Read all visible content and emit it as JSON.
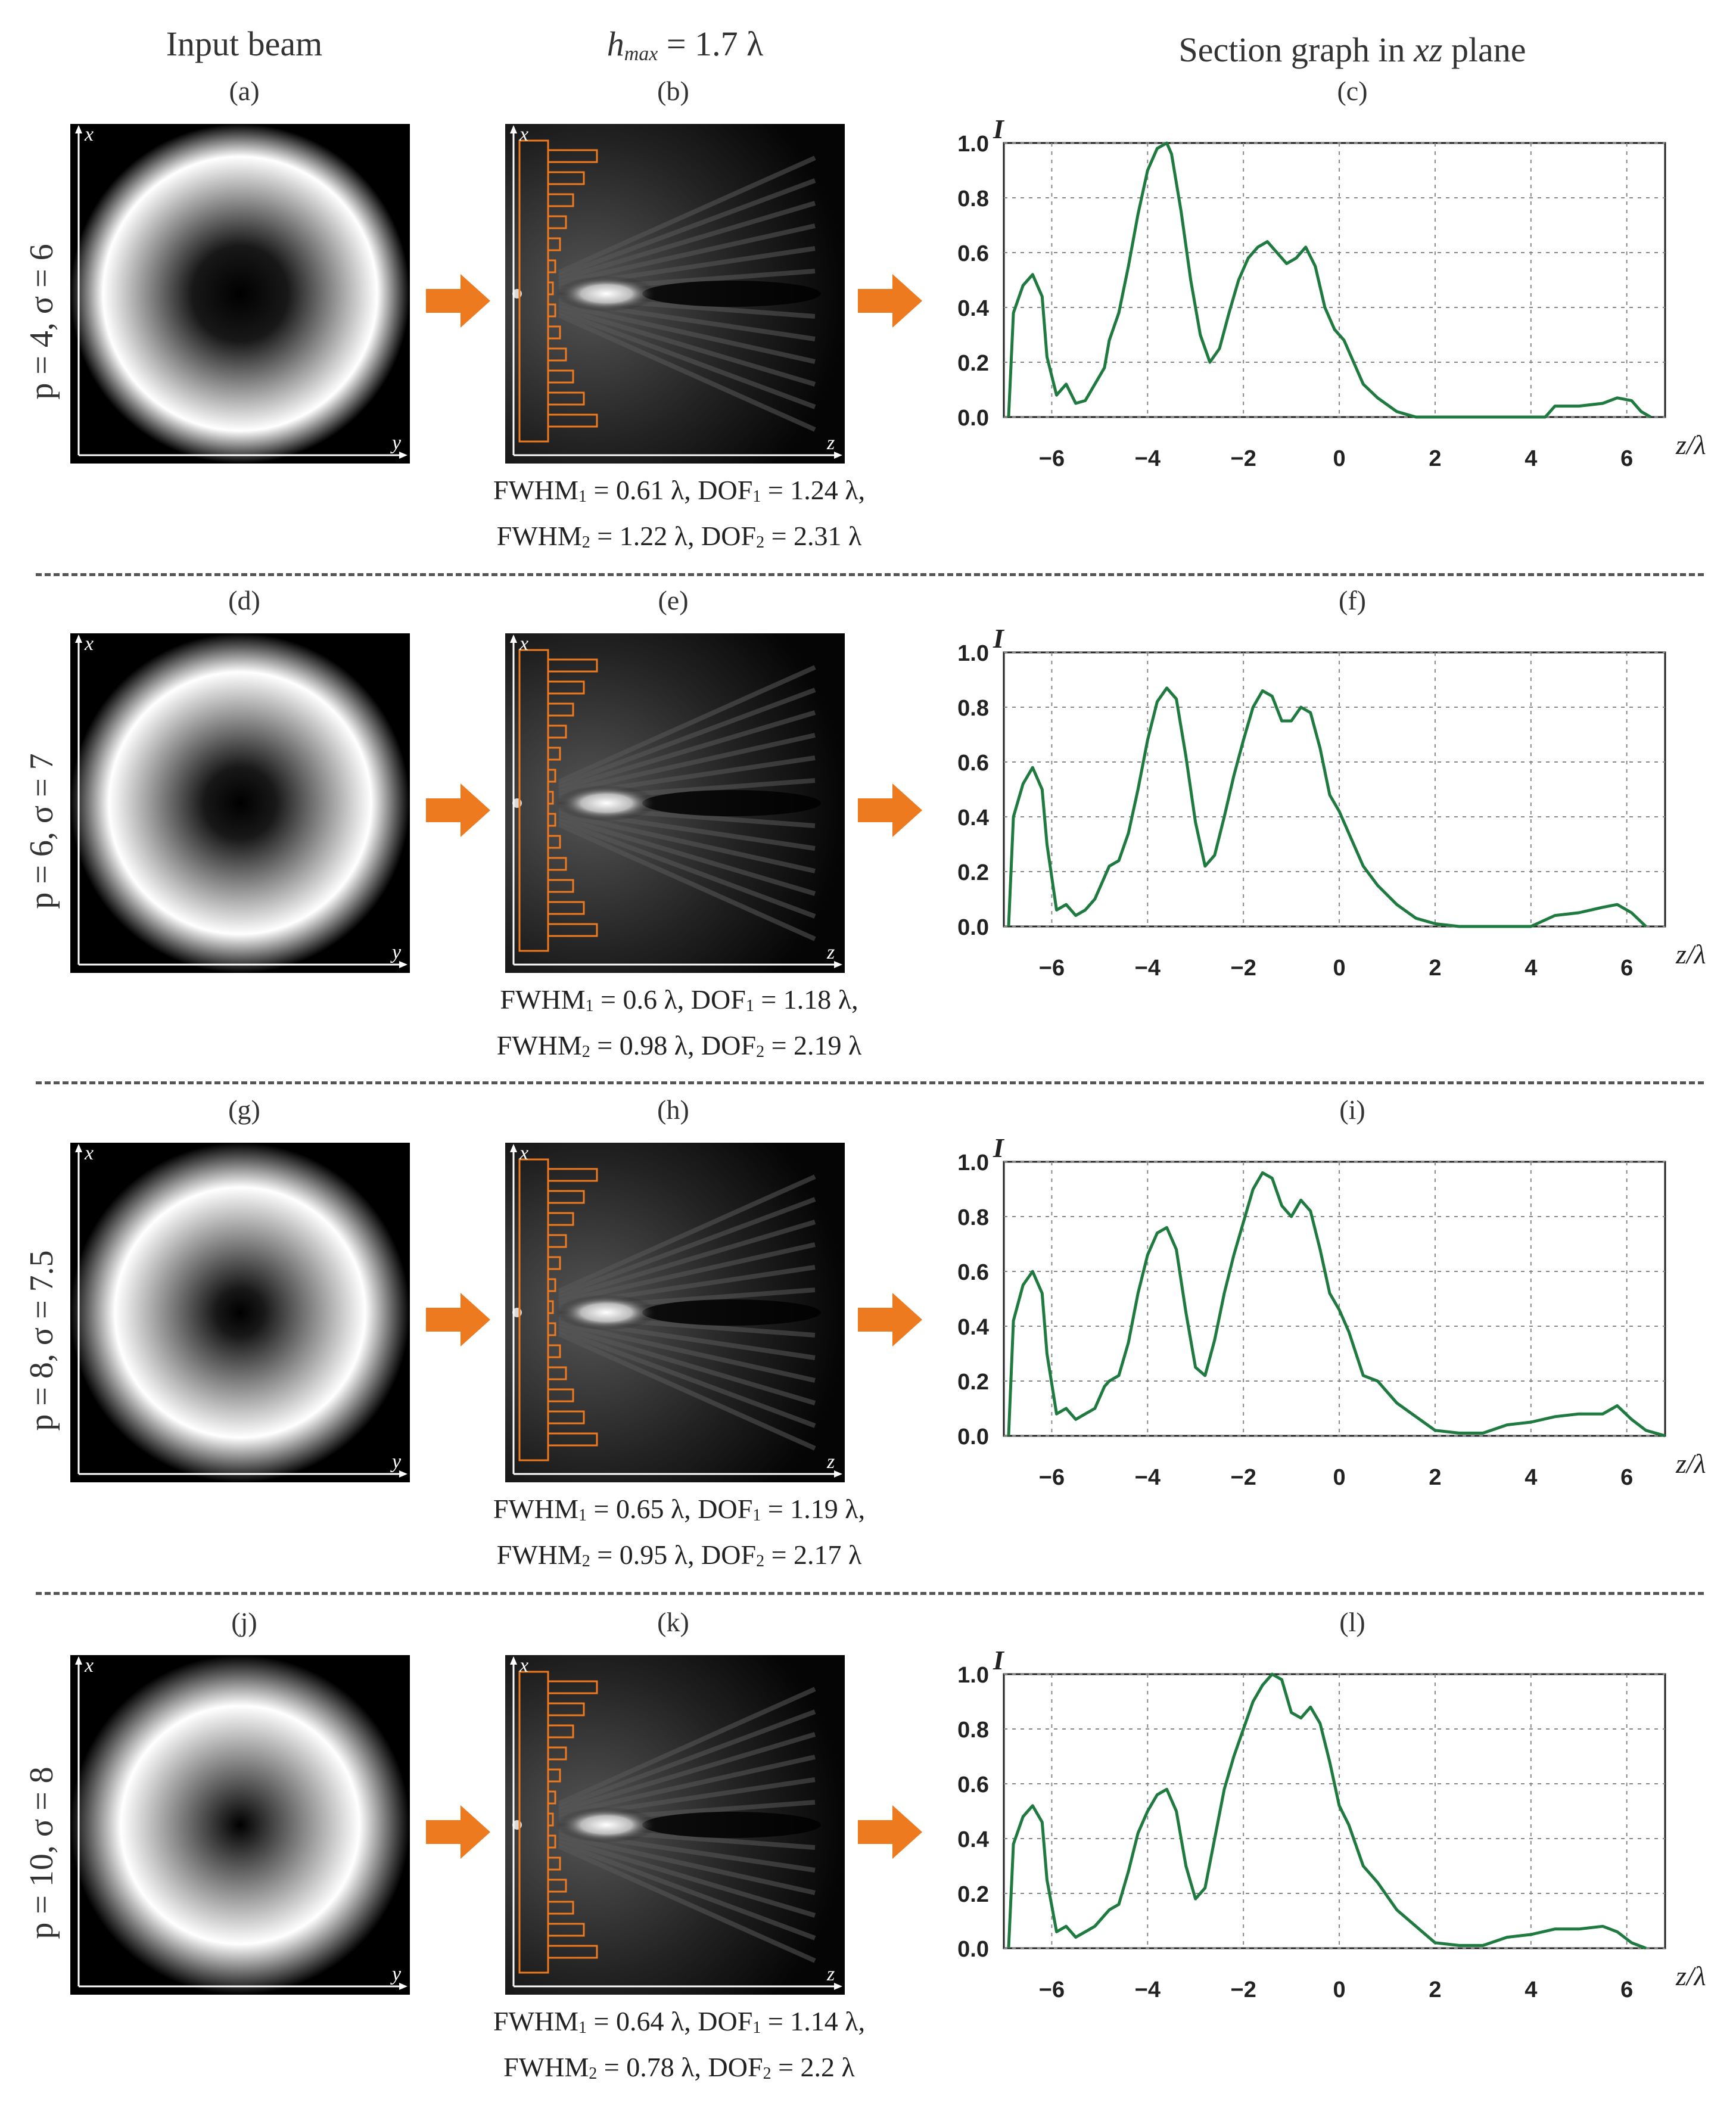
{
  "headers": {
    "input_beam": "Input beam",
    "hmax_symbol": "h",
    "hmax_sub": "max",
    "hmax_value": " = 1.7 λ",
    "section_prefix": "Section graph in ",
    "section_italic": "xz",
    "section_suffix": " plane"
  },
  "rows": [
    {
      "p_label": "p = 4, σ = 6",
      "labels": [
        "(a)",
        "(b)",
        "(c)"
      ],
      "cap1": {
        "a": "FWHM",
        "b": "1",
        "c": " = 0.61 λ, DOF",
        "d": "1",
        "e": " = 1.24 λ,"
      },
      "cap2": {
        "a": "FWHM",
        "b": "2",
        "c": " = 1.22 λ, DOF",
        "d": "2",
        "e": " = 2.31 λ"
      }
    },
    {
      "p_label": "p = 6, σ = 7",
      "labels": [
        "(d)",
        "(e)",
        "(f)"
      ],
      "cap1": {
        "a": "FWHM",
        "b": "1",
        "c": " = 0.6 λ, DOF",
        "d": "1",
        "e": " = 1.18 λ,"
      },
      "cap2": {
        "a": "FWHM",
        "b": "2",
        "c": " = 0.98 λ, DOF",
        "d": "2",
        "e": " = 2.19 λ"
      }
    },
    {
      "p_label": "p = 8, σ = 7.5",
      "labels": [
        "(g)",
        "(h)",
        "(i)"
      ],
      "cap1": {
        "a": "FWHM",
        "b": "1",
        "c": " = 0.65 λ, DOF",
        "d": "1",
        "e": " = 1.19 λ,"
      },
      "cap2": {
        "a": "FWHM",
        "b": "2",
        "c": " = 0.95 λ, DOF",
        "d": "2",
        "e": " = 2.17 λ"
      }
    },
    {
      "p_label": "p = 10, σ = 8",
      "labels": [
        "(j)",
        "(k)",
        "(l)"
      ],
      "cap1": {
        "a": "FWHM",
        "b": "1",
        "c": " = 0.64 λ, DOF",
        "d": "1",
        "e": " = 1.14 λ,"
      },
      "cap2": {
        "a": "FWHM",
        "b": "2",
        "c": " = 0.78 λ, DOF",
        "d": "2",
        "e": " = 2.2 λ"
      }
    }
  ],
  "panel_axes": {
    "x": "x",
    "y": "y",
    "z": "z"
  },
  "colors": {
    "curve": "#1e7a3e",
    "arrow": "#ee7a20",
    "grid": "#888888"
  },
  "chart_data": [
    {
      "type": "line",
      "ylabel": "I",
      "xlabel": "z/λ",
      "xlim": [
        -7,
        6.8
      ],
      "ylim": [
        0,
        1.0
      ],
      "xticks": [
        "-6",
        "-4",
        "-2",
        "0",
        "2",
        "4",
        "6"
      ],
      "yticks": [
        "0.0",
        "0.2",
        "0.4",
        "0.6",
        "0.8",
        "1.0"
      ],
      "grid": true,
      "x": [
        -6.9,
        -6.8,
        -6.6,
        -6.4,
        -6.2,
        -6.1,
        -5.9,
        -5.7,
        -5.5,
        -5.3,
        -5.1,
        -4.9,
        -4.8,
        -4.6,
        -4.4,
        -4.2,
        -4.0,
        -3.8,
        -3.6,
        -3.5,
        -3.3,
        -3.1,
        -2.9,
        -2.7,
        -2.5,
        -2.3,
        -2.1,
        -1.9,
        -1.7,
        -1.5,
        -1.3,
        -1.1,
        -0.9,
        -0.7,
        -0.5,
        -0.3,
        -0.1,
        0.1,
        0.3,
        0.5,
        0.8,
        1.2,
        1.6,
        2.0,
        2.5,
        3.0,
        3.5,
        4.0,
        4.3,
        4.5,
        5.0,
        5.5,
        5.8,
        6.1,
        6.3,
        6.5
      ],
      "y": [
        0.0,
        0.38,
        0.48,
        0.52,
        0.44,
        0.22,
        0.08,
        0.12,
        0.05,
        0.06,
        0.12,
        0.18,
        0.28,
        0.38,
        0.55,
        0.74,
        0.9,
        0.98,
        1.0,
        0.96,
        0.75,
        0.5,
        0.3,
        0.2,
        0.25,
        0.38,
        0.5,
        0.58,
        0.62,
        0.64,
        0.6,
        0.56,
        0.58,
        0.62,
        0.55,
        0.4,
        0.32,
        0.28,
        0.2,
        0.12,
        0.07,
        0.02,
        0.0,
        0.0,
        0.0,
        0.0,
        0.0,
        0.0,
        0.0,
        0.04,
        0.04,
        0.05,
        0.07,
        0.06,
        0.02,
        0.0
      ]
    },
    {
      "type": "line",
      "ylabel": "I",
      "xlabel": "z/λ",
      "xlim": [
        -7,
        6.8
      ],
      "ylim": [
        0,
        1.0
      ],
      "xticks": [
        "-6",
        "-4",
        "-2",
        "0",
        "2",
        "4",
        "6"
      ],
      "yticks": [
        "0.0",
        "0.2",
        "0.4",
        "0.6",
        "0.8",
        "1.0"
      ],
      "grid": true,
      "x": [
        -6.9,
        -6.8,
        -6.6,
        -6.4,
        -6.2,
        -6.1,
        -5.9,
        -5.7,
        -5.5,
        -5.3,
        -5.1,
        -4.9,
        -4.8,
        -4.6,
        -4.4,
        -4.2,
        -4.0,
        -3.8,
        -3.6,
        -3.4,
        -3.2,
        -3.0,
        -2.8,
        -2.6,
        -2.4,
        -2.2,
        -2.0,
        -1.8,
        -1.6,
        -1.4,
        -1.2,
        -1.0,
        -0.8,
        -0.6,
        -0.4,
        -0.2,
        0.0,
        0.2,
        0.5,
        0.8,
        1.2,
        1.6,
        2.0,
        2.5,
        3.0,
        3.5,
        4.0,
        4.5,
        5.0,
        5.5,
        5.8,
        6.1,
        6.4
      ],
      "y": [
        0.0,
        0.4,
        0.52,
        0.58,
        0.5,
        0.3,
        0.06,
        0.08,
        0.04,
        0.06,
        0.1,
        0.18,
        0.22,
        0.24,
        0.34,
        0.5,
        0.68,
        0.82,
        0.87,
        0.83,
        0.62,
        0.38,
        0.22,
        0.26,
        0.4,
        0.55,
        0.68,
        0.8,
        0.86,
        0.84,
        0.75,
        0.75,
        0.8,
        0.78,
        0.65,
        0.48,
        0.42,
        0.34,
        0.22,
        0.15,
        0.08,
        0.03,
        0.01,
        0.0,
        0.0,
        0.0,
        0.0,
        0.04,
        0.05,
        0.07,
        0.08,
        0.05,
        0.0
      ]
    },
    {
      "type": "line",
      "ylabel": "I",
      "xlabel": "z/λ",
      "xlim": [
        -7,
        6.8
      ],
      "ylim": [
        0,
        1.0
      ],
      "xticks": [
        "-6",
        "-4",
        "-2",
        "0",
        "2",
        "4",
        "6"
      ],
      "yticks": [
        "0.0",
        "0.2",
        "0.4",
        "0.6",
        "0.8",
        "1.0"
      ],
      "grid": true,
      "x": [
        -6.9,
        -6.8,
        -6.6,
        -6.4,
        -6.2,
        -6.1,
        -5.9,
        -5.7,
        -5.5,
        -5.3,
        -5.1,
        -4.9,
        -4.8,
        -4.6,
        -4.4,
        -4.2,
        -4.0,
        -3.8,
        -3.6,
        -3.4,
        -3.2,
        -3.0,
        -2.8,
        -2.6,
        -2.4,
        -2.2,
        -2.0,
        -1.8,
        -1.6,
        -1.4,
        -1.2,
        -1.0,
        -0.8,
        -0.6,
        -0.4,
        -0.2,
        0.0,
        0.2,
        0.5,
        0.8,
        1.2,
        1.6,
        2.0,
        2.5,
        3.0,
        3.5,
        4.0,
        4.5,
        5.0,
        5.5,
        5.8,
        6.1,
        6.4,
        6.8
      ],
      "y": [
        0.0,
        0.42,
        0.55,
        0.6,
        0.52,
        0.3,
        0.08,
        0.1,
        0.06,
        0.08,
        0.1,
        0.18,
        0.2,
        0.22,
        0.34,
        0.52,
        0.66,
        0.74,
        0.76,
        0.68,
        0.45,
        0.25,
        0.22,
        0.35,
        0.52,
        0.66,
        0.78,
        0.9,
        0.96,
        0.94,
        0.84,
        0.8,
        0.86,
        0.82,
        0.68,
        0.52,
        0.46,
        0.38,
        0.22,
        0.2,
        0.12,
        0.07,
        0.02,
        0.01,
        0.01,
        0.04,
        0.05,
        0.07,
        0.08,
        0.08,
        0.11,
        0.06,
        0.02,
        0.0
      ]
    },
    {
      "type": "line",
      "ylabel": "I",
      "xlabel": "z/λ",
      "xlim": [
        -7,
        6.8
      ],
      "ylim": [
        0,
        1.0
      ],
      "xticks": [
        "-6",
        "-4",
        "-2",
        "0",
        "2",
        "4",
        "6"
      ],
      "yticks": [
        "0.0",
        "0.2",
        "0.4",
        "0.6",
        "0.8",
        "1.0"
      ],
      "grid": true,
      "x": [
        -6.9,
        -6.8,
        -6.6,
        -6.4,
        -6.2,
        -6.1,
        -5.9,
        -5.7,
        -5.5,
        -5.3,
        -5.1,
        -4.9,
        -4.8,
        -4.6,
        -4.4,
        -4.2,
        -4.0,
        -3.8,
        -3.6,
        -3.4,
        -3.2,
        -3.0,
        -2.8,
        -2.6,
        -2.4,
        -2.2,
        -2.0,
        -1.8,
        -1.6,
        -1.4,
        -1.2,
        -1.0,
        -0.8,
        -0.6,
        -0.4,
        -0.2,
        0.0,
        0.2,
        0.5,
        0.8,
        1.2,
        1.6,
        2.0,
        2.5,
        3.0,
        3.5,
        4.0,
        4.5,
        5.0,
        5.5,
        5.8,
        6.1,
        6.4
      ],
      "y": [
        0.0,
        0.38,
        0.48,
        0.52,
        0.46,
        0.25,
        0.06,
        0.08,
        0.04,
        0.06,
        0.08,
        0.12,
        0.14,
        0.16,
        0.28,
        0.42,
        0.5,
        0.56,
        0.58,
        0.5,
        0.3,
        0.18,
        0.22,
        0.4,
        0.58,
        0.7,
        0.8,
        0.9,
        0.96,
        1.0,
        0.98,
        0.86,
        0.84,
        0.88,
        0.82,
        0.68,
        0.52,
        0.45,
        0.3,
        0.24,
        0.14,
        0.08,
        0.02,
        0.01,
        0.01,
        0.04,
        0.05,
        0.07,
        0.07,
        0.08,
        0.06,
        0.02,
        0.0
      ]
    }
  ]
}
